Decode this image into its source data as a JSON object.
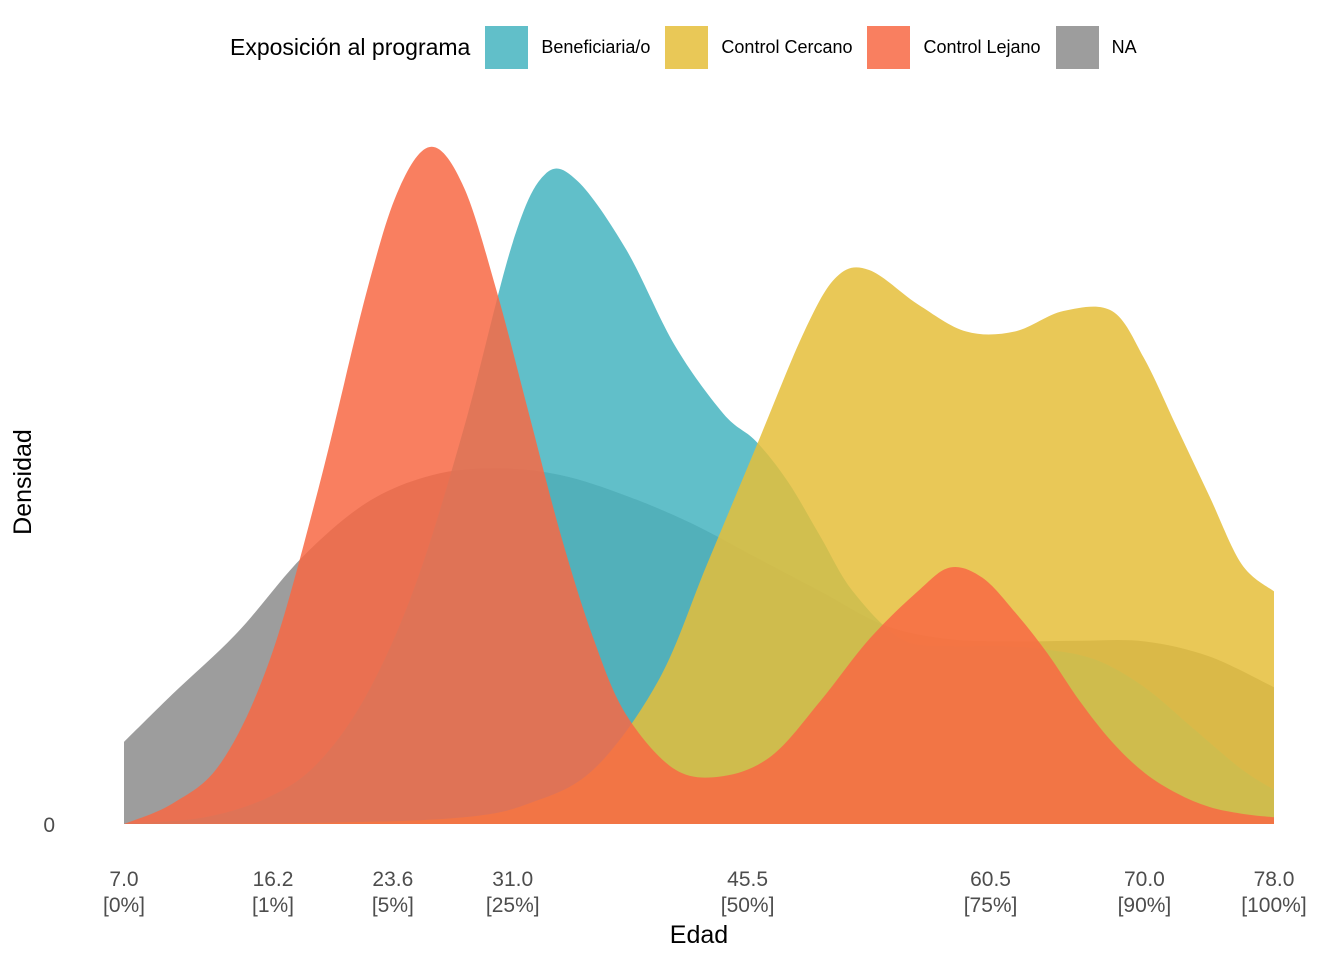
{
  "chart_data": {
    "type": "area",
    "subtype": "density",
    "title": "",
    "xlabel": "Edad",
    "ylabel": "Densidad",
    "legend_title": "Exposición al programa",
    "legend_position": "top",
    "grid": false,
    "xlim": [
      7.0,
      78.0
    ],
    "ylim": [
      0,
      1
    ],
    "y_tick_labels": [
      "0"
    ],
    "x_ticks": [
      {
        "value": 7.0,
        "label": "7.0",
        "pct": "[0%]"
      },
      {
        "value": 16.2,
        "label": "16.2",
        "pct": "[1%]"
      },
      {
        "value": 23.6,
        "label": "23.6",
        "pct": "[5%]"
      },
      {
        "value": 31.0,
        "label": "31.0",
        "pct": "[25%]"
      },
      {
        "value": 45.5,
        "label": "45.5",
        "pct": "[50%]"
      },
      {
        "value": 60.5,
        "label": "60.5",
        "pct": "[75%]"
      },
      {
        "value": 70.0,
        "label": "70.0",
        "pct": "[90%]"
      },
      {
        "value": 78.0,
        "label": "78.0",
        "pct": "[100%]"
      }
    ],
    "series": [
      {
        "name": "NA",
        "color": "#8c8c8c",
        "x": [
          7,
          10,
          14,
          18,
          22,
          26,
          30,
          34,
          38,
          42,
          46,
          50,
          54,
          58,
          62,
          66,
          70,
          74,
          78
        ],
        "values": [
          0.12,
          0.19,
          0.28,
          0.39,
          0.47,
          0.51,
          0.52,
          0.51,
          0.48,
          0.44,
          0.39,
          0.34,
          0.29,
          0.27,
          0.267,
          0.268,
          0.267,
          0.245,
          0.2
        ]
      },
      {
        "name": "Beneficiaria/o",
        "color": "#45b4bf",
        "x": [
          7,
          12,
          16,
          19,
          22,
          25,
          28,
          31,
          33,
          35,
          38,
          41,
          44,
          46,
          48,
          50,
          52,
          55,
          58,
          61,
          64,
          67,
          70,
          73,
          76,
          78
        ],
        "values": [
          0.0,
          0.01,
          0.04,
          0.09,
          0.19,
          0.35,
          0.58,
          0.85,
          0.95,
          0.94,
          0.84,
          0.7,
          0.6,
          0.56,
          0.5,
          0.42,
          0.34,
          0.27,
          0.26,
          0.26,
          0.255,
          0.24,
          0.2,
          0.14,
          0.08,
          0.05
        ]
      },
      {
        "name": "Control Cercano",
        "color": "#e5be3a",
        "x": [
          7,
          20,
          28,
          32,
          36,
          40,
          43,
          46,
          49,
          51,
          53,
          56,
          59,
          62,
          65,
          68,
          70,
          72,
          74,
          76,
          78
        ],
        "values": [
          0.0,
          0.002,
          0.01,
          0.03,
          0.08,
          0.21,
          0.38,
          0.55,
          0.72,
          0.8,
          0.81,
          0.76,
          0.72,
          0.72,
          0.75,
          0.75,
          0.68,
          0.58,
          0.48,
          0.38,
          0.34
        ]
      },
      {
        "name": "Control Lejano",
        "color": "#f86844",
        "x": [
          7,
          10,
          13,
          16,
          19,
          22,
          24,
          26,
          28,
          30,
          32,
          34,
          36,
          38,
          41,
          44,
          47,
          50,
          53,
          56,
          58,
          60,
          62,
          64,
          66,
          68,
          70,
          72,
          74,
          76,
          78
        ],
        "values": [
          0.0,
          0.03,
          0.09,
          0.24,
          0.49,
          0.78,
          0.93,
          0.99,
          0.93,
          0.78,
          0.6,
          0.42,
          0.27,
          0.16,
          0.08,
          0.07,
          0.1,
          0.18,
          0.27,
          0.34,
          0.375,
          0.36,
          0.31,
          0.25,
          0.18,
          0.12,
          0.075,
          0.045,
          0.025,
          0.015,
          0.01
        ]
      }
    ]
  }
}
